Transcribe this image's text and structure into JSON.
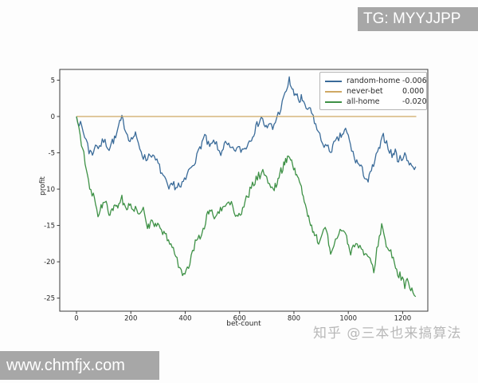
{
  "watermarks": {
    "tg_badge": "TG: MYYJJPP",
    "site_badge": "www.chmfjx.com",
    "zhihu": "知乎 @三本也来搞算法"
  },
  "colors": {
    "random_home": "#3a6b99",
    "never_bet": "#cfa964",
    "all_home": "#3e9146",
    "spine": "#3c3c3c",
    "tick_label": "#262626",
    "badge_bg": "#a7a7a7",
    "zhihu_text": "#a8a8a8"
  },
  "chart_data": {
    "type": "line",
    "xlabel": "bet-count",
    "ylabel": "profit",
    "xticks": [
      0,
      200,
      400,
      600,
      800,
      1000,
      1200
    ],
    "yticks": [
      5,
      0,
      -5,
      -10,
      -15,
      -20,
      -25
    ],
    "xlim": [
      -61.6,
      1292.6
    ],
    "ylim": [
      -26.8,
      6.48
    ],
    "grid": false,
    "legend_position": "upper right",
    "series": [
      {
        "name": "random-home",
        "value_label": "-0.006",
        "color": "#3a6b99",
        "noisy": true,
        "points": [
          [
            0,
            0
          ],
          [
            10,
            -0.8
          ],
          [
            20,
            -1.6
          ],
          [
            30,
            -2.8
          ],
          [
            41,
            -3.4
          ],
          [
            46,
            -5.2
          ],
          [
            55,
            -4.6
          ],
          [
            62,
            -5.3
          ],
          [
            70,
            -3.6
          ],
          [
            80,
            -4.2
          ],
          [
            90,
            -3.9
          ],
          [
            100,
            -3.3
          ],
          [
            110,
            -3.8
          ],
          [
            120,
            -4.3
          ],
          [
            132,
            -3.4
          ],
          [
            144,
            -3.0
          ],
          [
            155,
            -1.4
          ],
          [
            167,
            -0.3
          ],
          [
            176,
            -1.2
          ],
          [
            183,
            -2.1
          ],
          [
            192,
            -2.8
          ],
          [
            202,
            -3.2
          ],
          [
            210,
            -2.7
          ],
          [
            217,
            -2.6
          ],
          [
            228,
            -3.9
          ],
          [
            238,
            -4.7
          ],
          [
            246,
            -5.5
          ],
          [
            256,
            -5.9
          ],
          [
            266,
            -5.3
          ],
          [
            276,
            -5.1
          ],
          [
            286,
            -5.9
          ],
          [
            296,
            -6.2
          ],
          [
            305,
            -7.0
          ],
          [
            314,
            -7.8
          ],
          [
            324,
            -8.7
          ],
          [
            334,
            -9.6
          ],
          [
            340,
            -10.1
          ],
          [
            349,
            -9.7
          ],
          [
            358,
            -9.3
          ],
          [
            366,
            -9.8
          ],
          [
            375,
            -9.4
          ],
          [
            384,
            -10.0
          ],
          [
            393,
            -9.0
          ],
          [
            402,
            -8.6
          ],
          [
            412,
            -7.6
          ],
          [
            422,
            -6.8
          ],
          [
            432,
            -6.2
          ],
          [
            443,
            -5.6
          ],
          [
            454,
            -4.3
          ],
          [
            466,
            -3.2
          ],
          [
            472,
            -2.7
          ],
          [
            481,
            -3.6
          ],
          [
            490,
            -4.3
          ],
          [
            499,
            -3.8
          ],
          [
            510,
            -3.4
          ],
          [
            520,
            -4.6
          ],
          [
            531,
            -5.0
          ],
          [
            540,
            -4.2
          ],
          [
            548,
            -3.8
          ],
          [
            560,
            -4.2
          ],
          [
            575,
            -4.7
          ],
          [
            590,
            -4.4
          ],
          [
            605,
            -4.6
          ],
          [
            620,
            -4.4
          ],
          [
            632,
            -3.6
          ],
          [
            644,
            -2.8
          ],
          [
            656,
            -1.9
          ],
          [
            668,
            -0.9
          ],
          [
            680,
            -0.1
          ],
          [
            690,
            -1.0
          ],
          [
            702,
            -1.8
          ],
          [
            712,
            -1.0
          ],
          [
            722,
            -1.7
          ],
          [
            732,
            -0.6
          ],
          [
            742,
            0.3
          ],
          [
            752,
            1.2
          ],
          [
            762,
            2.4
          ],
          [
            772,
            3.6
          ],
          [
            783,
            5.0
          ],
          [
            790,
            4.2
          ],
          [
            797,
            3.4
          ],
          [
            805,
            2.6
          ],
          [
            812,
            3.2
          ],
          [
            820,
            1.9
          ],
          [
            827,
            2.6
          ],
          [
            835,
            1.6
          ],
          [
            845,
            1.1
          ],
          [
            856,
            1.0
          ],
          [
            865,
            0.4
          ],
          [
            871,
            0.0
          ],
          [
            880,
            -1.2
          ],
          [
            890,
            -2.2
          ],
          [
            900,
            -3.2
          ],
          [
            911,
            -3.8
          ],
          [
            921,
            -4.3
          ],
          [
            935,
            -4.7
          ],
          [
            947,
            -3.9
          ],
          [
            959,
            -3.3
          ],
          [
            970,
            -2.8
          ],
          [
            982,
            -2.3
          ],
          [
            990,
            -1.9
          ],
          [
            1000,
            -2.8
          ],
          [
            1012,
            -4.5
          ],
          [
            1023,
            -5.8
          ],
          [
            1035,
            -6.4
          ],
          [
            1047,
            -7.1
          ],
          [
            1060,
            -8.1
          ],
          [
            1073,
            -8.9
          ],
          [
            1085,
            -7.5
          ],
          [
            1097,
            -6.2
          ],
          [
            1108,
            -5.0
          ],
          [
            1120,
            -3.8
          ],
          [
            1129,
            -2.7
          ],
          [
            1141,
            -3.6
          ],
          [
            1152,
            -4.6
          ],
          [
            1161,
            -5.4
          ],
          [
            1173,
            -4.8
          ],
          [
            1185,
            -6.2
          ],
          [
            1196,
            -5.6
          ],
          [
            1208,
            -5.3
          ],
          [
            1220,
            -6.1
          ],
          [
            1229,
            -6.4
          ],
          [
            1238,
            -7.0
          ],
          [
            1248,
            -6.9
          ]
        ]
      },
      {
        "name": "never-bet",
        "value_label": "0.000",
        "color": "#cfa964",
        "noisy": false,
        "points": [
          [
            0,
            0
          ],
          [
            1250,
            0
          ]
        ]
      },
      {
        "name": "all-home",
        "value_label": "-0.020",
        "color": "#3e9146",
        "noisy": true,
        "points": [
          [
            0,
            0
          ],
          [
            9,
            -1.8
          ],
          [
            18,
            -3.5
          ],
          [
            27,
            -5.2
          ],
          [
            36,
            -7.4
          ],
          [
            44,
            -9.2
          ],
          [
            53,
            -10.4
          ],
          [
            62,
            -10.9
          ],
          [
            70,
            -12.2
          ],
          [
            79,
            -13.4
          ],
          [
            87,
            -12.7
          ],
          [
            94,
            -12.3
          ],
          [
            102,
            -11.9
          ],
          [
            109,
            -11.8
          ],
          [
            116,
            -13.2
          ],
          [
            123,
            -13.8
          ],
          [
            131,
            -12.9
          ],
          [
            138,
            -12.7
          ],
          [
            145,
            -12.4
          ],
          [
            152,
            -12.2
          ],
          [
            160,
            -11.6
          ],
          [
            167,
            -11.2
          ],
          [
            175,
            -12.4
          ],
          [
            185,
            -13.3
          ],
          [
            192,
            -12.4
          ],
          [
            199,
            -11.8
          ],
          [
            208,
            -12.7
          ],
          [
            217,
            -12.5
          ],
          [
            226,
            -13.1
          ],
          [
            235,
            -13.6
          ],
          [
            246,
            -12.9
          ],
          [
            252,
            -14.0
          ],
          [
            261,
            -15.8
          ],
          [
            268,
            -14.9
          ],
          [
            275,
            -14.5
          ],
          [
            283,
            -15.2
          ],
          [
            290,
            -14.2
          ],
          [
            299,
            -15.0
          ],
          [
            308,
            -15.6
          ],
          [
            317,
            -16.1
          ],
          [
            326,
            -16.5
          ],
          [
            334,
            -16.8
          ],
          [
            343,
            -17.1
          ],
          [
            352,
            -18.0
          ],
          [
            361,
            -18.8
          ],
          [
            370,
            -19.8
          ],
          [
            380,
            -20.7
          ],
          [
            390,
            -21.4
          ],
          [
            399,
            -22.0
          ],
          [
            408,
            -21.2
          ],
          [
            417,
            -20.1
          ],
          [
            427,
            -18.8
          ],
          [
            437,
            -17.5
          ],
          [
            446,
            -17.0
          ],
          [
            455,
            -16.4
          ],
          [
            466,
            -15.5
          ],
          [
            475,
            -14.4
          ],
          [
            483,
            -13.6
          ],
          [
            490,
            -12.5
          ],
          [
            498,
            -13.2
          ],
          [
            507,
            -13.7
          ],
          [
            516,
            -13.8
          ],
          [
            525,
            -13.2
          ],
          [
            534,
            -12.8
          ],
          [
            543,
            -12.5
          ],
          [
            552,
            -12.0
          ],
          [
            560,
            -11.5
          ],
          [
            570,
            -12.2
          ],
          [
            580,
            -13.0
          ],
          [
            590,
            -13.5
          ],
          [
            598,
            -13.8
          ],
          [
            607,
            -13.0
          ],
          [
            616,
            -12.2
          ],
          [
            625,
            -11.3
          ],
          [
            634,
            -10.6
          ],
          [
            643,
            -9.9
          ],
          [
            652,
            -9.2
          ],
          [
            661,
            -8.6
          ],
          [
            670,
            -8.2
          ],
          [
            680,
            -7.9
          ],
          [
            691,
            -7.6
          ],
          [
            700,
            -8.4
          ],
          [
            710,
            -9.3
          ],
          [
            724,
            -10.3
          ],
          [
            731,
            -9.7
          ],
          [
            738,
            -9.0
          ],
          [
            745,
            -8.3
          ],
          [
            752,
            -7.6
          ],
          [
            759,
            -7.0
          ],
          [
            766,
            -6.4
          ],
          [
            773,
            -5.8
          ],
          [
            780,
            -5.3
          ],
          [
            788,
            -6.0
          ],
          [
            795,
            -6.6
          ],
          [
            803,
            -7.3
          ],
          [
            810,
            -8.0
          ],
          [
            817,
            -8.7
          ],
          [
            824,
            -9.4
          ],
          [
            831,
            -10.4
          ],
          [
            838,
            -11.4
          ],
          [
            847,
            -13.3
          ],
          [
            854,
            -14.0
          ],
          [
            861,
            -14.8
          ],
          [
            869,
            -15.5
          ],
          [
            876,
            -16.2
          ],
          [
            883,
            -16.7
          ],
          [
            891,
            -17.3
          ],
          [
            897,
            -16.8
          ],
          [
            903,
            -16.2
          ],
          [
            909,
            -15.8
          ],
          [
            915,
            -15.3
          ],
          [
            921,
            -16.1
          ],
          [
            928,
            -17.5
          ],
          [
            935,
            -18.9
          ],
          [
            941,
            -18.2
          ],
          [
            947,
            -17.5
          ],
          [
            953,
            -17.0
          ],
          [
            959,
            -16.5
          ],
          [
            965,
            -16.1
          ],
          [
            970,
            -15.8
          ],
          [
            976,
            -15.5
          ],
          [
            982,
            -15.3
          ],
          [
            988,
            -16.0
          ],
          [
            994,
            -16.8
          ],
          [
            1001,
            -17.7
          ],
          [
            1009,
            -18.6
          ],
          [
            1023,
            -17.5
          ],
          [
            1038,
            -18.0
          ],
          [
            1053,
            -18.5
          ],
          [
            1067,
            -19.1
          ],
          [
            1080,
            -20.0
          ],
          [
            1094,
            -21.1
          ],
          [
            1105,
            -18.5
          ],
          [
            1114,
            -16.5
          ],
          [
            1123,
            -14.9
          ],
          [
            1132,
            -16.5
          ],
          [
            1140,
            -18.0
          ],
          [
            1152,
            -18.5
          ],
          [
            1161,
            -19.1
          ],
          [
            1170,
            -20.5
          ],
          [
            1182,
            -22.0
          ],
          [
            1190,
            -21.5
          ],
          [
            1199,
            -22.5
          ],
          [
            1208,
            -23.2
          ],
          [
            1217,
            -22.8
          ],
          [
            1226,
            -23.5
          ],
          [
            1238,
            -24.4
          ],
          [
            1248,
            -24.8
          ]
        ]
      }
    ]
  }
}
